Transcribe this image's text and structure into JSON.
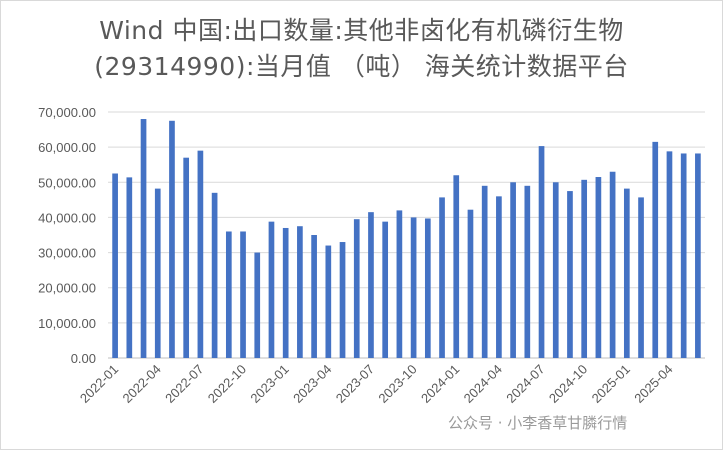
{
  "chart_data": {
    "type": "bar",
    "title_line1": "Wind 中国:出口数量:其他非卤化有机磷衍生物",
    "title_line2": "(29314990):当月值 （吨） 海关统计数据平台",
    "ylim": [
      0,
      70000
    ],
    "yticks": [
      "0.00",
      "10,000.00",
      "20,000.00",
      "30,000.00",
      "40,000.00",
      "50,000.00",
      "60,000.00",
      "70,000.00"
    ],
    "ytick_values": [
      0,
      10000,
      20000,
      30000,
      40000,
      50000,
      60000,
      70000
    ],
    "categories": [
      "2022-01",
      "2022-02",
      "2022-03",
      "2022-04",
      "2022-05",
      "2022-06",
      "2022-07",
      "2022-08",
      "2022-09",
      "2022-10",
      "2022-11",
      "2022-12",
      "2023-01",
      "2023-02",
      "2023-03",
      "2023-04",
      "2023-05",
      "2023-06",
      "2023-07",
      "2023-08",
      "2023-09",
      "2023-10",
      "2023-11",
      "2023-12",
      "2024-01",
      "2024-02",
      "2024-03",
      "2024-04",
      "2024-05",
      "2024-06",
      "2024-07",
      "2024-08",
      "2024-09",
      "2024-10",
      "2024-11",
      "2024-12",
      "2025-01",
      "2025-02",
      "2025-03",
      "2025-04",
      "2025-05",
      "2025-06"
    ],
    "xtick_labels": [
      "2022-01",
      "2022-04",
      "2022-07",
      "2022-10",
      "2023-01",
      "2023-04",
      "2023-07",
      "2023-10",
      "2024-01",
      "2024-04",
      "2024-07",
      "2024-10",
      "2025-01",
      "2025-04"
    ],
    "values": [
      52500,
      51400,
      68000,
      48200,
      67500,
      57000,
      59000,
      47000,
      36000,
      36000,
      30000,
      38800,
      37000,
      37500,
      35000,
      32000,
      33000,
      39500,
      41500,
      38800,
      42000,
      40000,
      39700,
      45700,
      52000,
      42200,
      49000,
      46000,
      50000,
      49000,
      60300,
      50000,
      47500,
      50700,
      51500,
      53000,
      48200,
      45700,
      61500,
      58800,
      58200,
      58200
    ],
    "bar_color": "#4472C4",
    "grid": true
  },
  "watermark": "公众号 · 小李香草甘膦行情"
}
